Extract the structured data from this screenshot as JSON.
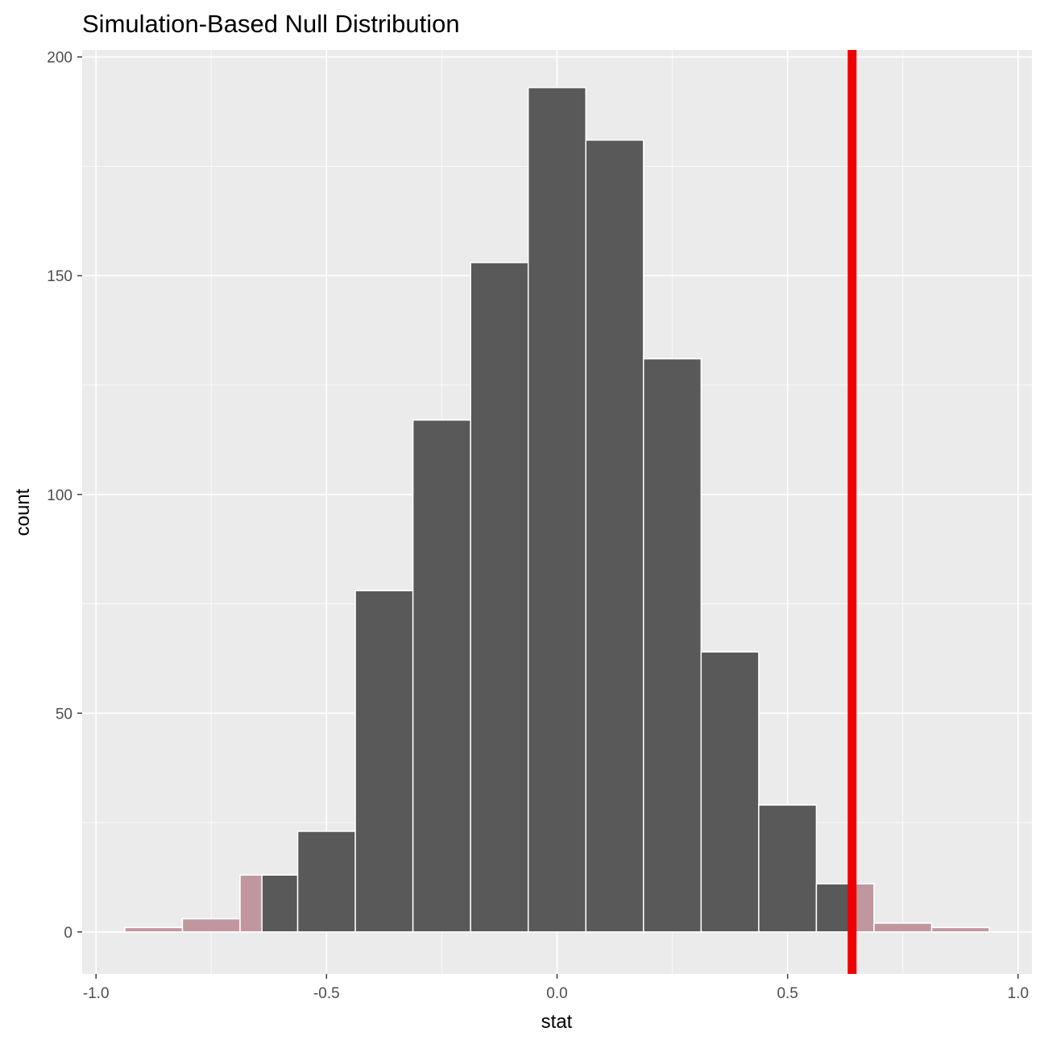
{
  "chart_data": {
    "type": "bar",
    "title": "Simulation-Based Null Distribution",
    "xlabel": "stat",
    "ylabel": "count",
    "xlim": [
      -1.03,
      1.03
    ],
    "ylim": [
      -9.6,
      201.6
    ],
    "x_ticks": [
      {
        "value": -1.0,
        "label": "-1.0"
      },
      {
        "value": -0.5,
        "label": "-0.5"
      },
      {
        "value": 0.0,
        "label": "0.0"
      },
      {
        "value": 0.5,
        "label": "0.5"
      },
      {
        "value": 1.0,
        "label": "1.0"
      }
    ],
    "y_ticks": [
      {
        "value": 0,
        "label": "0"
      },
      {
        "value": 50,
        "label": "50"
      },
      {
        "value": 100,
        "label": "100"
      },
      {
        "value": 150,
        "label": "150"
      },
      {
        "value": 200,
        "label": "200"
      }
    ],
    "bin_width": 0.125,
    "bins": [
      {
        "center": -0.875,
        "count": 1
      },
      {
        "center": -0.75,
        "count": 3
      },
      {
        "center": -0.625,
        "count": 13
      },
      {
        "center": -0.5,
        "count": 23
      },
      {
        "center": -0.375,
        "count": 78
      },
      {
        "center": -0.25,
        "count": 117
      },
      {
        "center": -0.125,
        "count": 153
      },
      {
        "center": 0.0,
        "count": 193
      },
      {
        "center": 0.125,
        "count": 181
      },
      {
        "center": 0.25,
        "count": 131
      },
      {
        "center": 0.375,
        "count": 64
      },
      {
        "center": 0.5,
        "count": 29
      },
      {
        "center": 0.625,
        "count": 11
      },
      {
        "center": 0.75,
        "count": 2
      },
      {
        "center": 0.875,
        "count": 1
      }
    ],
    "observed_stat": 0.64,
    "shade_direction": "two-sided",
    "grid": true
  },
  "colors": {
    "panel_bg": "#ebebeb",
    "grid_major": "#ffffff",
    "bar_fill": "#595959",
    "bar_outline": "#ffffff",
    "shade_fill": "#c0979e",
    "observed_line": "#ee0000"
  }
}
